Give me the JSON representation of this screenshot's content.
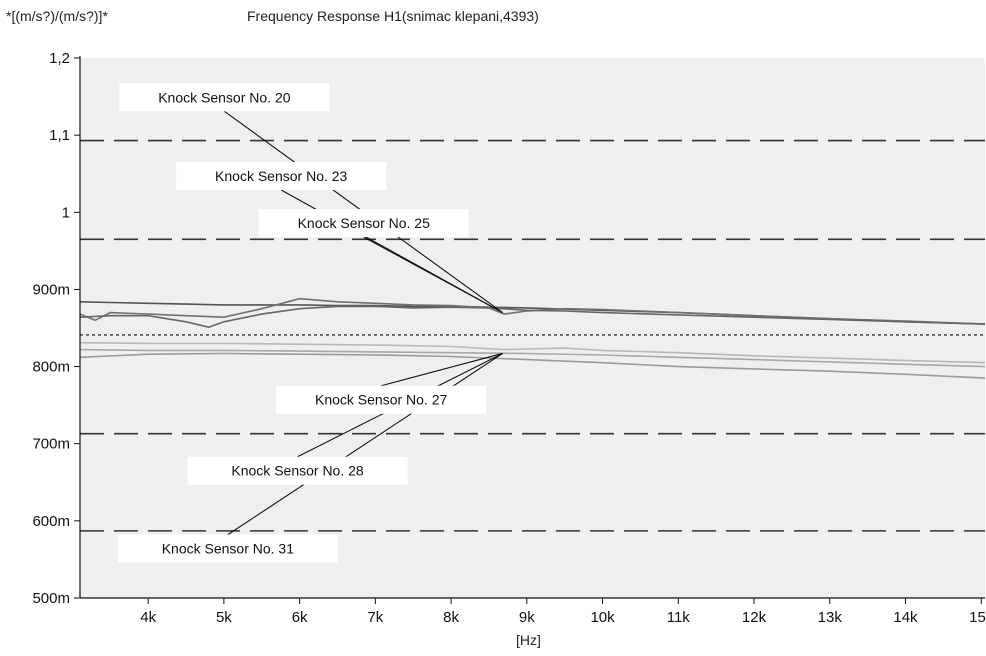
{
  "chart_data": {
    "type": "line",
    "unit_label": "*[(m/s?)/(m/s?)]*",
    "title": "Frequency Response H1(snimac klepani,4393)",
    "xlabel": "[Hz]",
    "ylabel": "",
    "xlim": [
      3100,
      15050
    ],
    "ylim": [
      0.5,
      1.2
    ],
    "grid": false,
    "x_ticks": [
      {
        "v": 4000,
        "label": "4k"
      },
      {
        "v": 5000,
        "label": "5k"
      },
      {
        "v": 6000,
        "label": "6k"
      },
      {
        "v": 7000,
        "label": "7k"
      },
      {
        "v": 8000,
        "label": "8k"
      },
      {
        "v": 9000,
        "label": "9k"
      },
      {
        "v": 10000,
        "label": "10k"
      },
      {
        "v": 11000,
        "label": "11k"
      },
      {
        "v": 12000,
        "label": "12k"
      },
      {
        "v": 13000,
        "label": "13k"
      },
      {
        "v": 14000,
        "label": "14k"
      },
      {
        "v": 15000,
        "label": "15k"
      }
    ],
    "y_ticks": [
      {
        "v": 0.5,
        "label": "500m"
      },
      {
        "v": 0.6,
        "label": "600m"
      },
      {
        "v": 0.7,
        "label": "700m"
      },
      {
        "v": 0.8,
        "label": "800m"
      },
      {
        "v": 0.9,
        "label": "900m"
      },
      {
        "v": 1.0,
        "label": "1"
      },
      {
        "v": 1.1,
        "label": "1,1"
      },
      {
        "v": 1.2,
        "label": "1,2"
      }
    ],
    "reference_lines": [
      {
        "y": 1.093,
        "style": "dashed"
      },
      {
        "y": 0.965,
        "style": "dashed"
      },
      {
        "y": 0.841,
        "style": "dotted"
      },
      {
        "y": 0.713,
        "style": "dashed"
      },
      {
        "y": 0.587,
        "style": "dashed"
      }
    ],
    "series": [
      {
        "name": "Knock Sensor No. 20",
        "color": "#555555",
        "x": [
          3100,
          3500,
          4000,
          4500,
          5000,
          5500,
          6000,
          6500,
          7000,
          7500,
          8000,
          8500,
          9000,
          10000,
          11000,
          12000,
          13000,
          14000,
          15050
        ],
        "y": [
          0.884,
          0.883,
          0.882,
          0.881,
          0.88,
          0.88,
          0.88,
          0.879,
          0.879,
          0.878,
          0.878,
          0.877,
          0.876,
          0.873,
          0.87,
          0.866,
          0.862,
          0.858,
          0.855
        ]
      },
      {
        "name": "Knock Sensor No. 23",
        "color": "#707070",
        "x": [
          3100,
          3300,
          3500,
          4000,
          4500,
          5000,
          5500,
          6000,
          6500,
          7000,
          7500,
          8000,
          8500,
          8700,
          9000,
          9500,
          10000,
          11000,
          12000,
          13000,
          14000,
          15050
        ],
        "y": [
          0.868,
          0.86,
          0.87,
          0.868,
          0.866,
          0.864,
          0.875,
          0.888,
          0.884,
          0.882,
          0.88,
          0.879,
          0.876,
          0.868,
          0.872,
          0.875,
          0.874,
          0.87,
          0.866,
          0.862,
          0.859,
          0.855
        ]
      },
      {
        "name": "Knock Sensor No. 25",
        "color": "#666666",
        "x": [
          3100,
          3500,
          4000,
          4500,
          4800,
          5000,
          5500,
          6000,
          6500,
          7000,
          7500,
          8000,
          8500,
          9000,
          9500,
          10000,
          11000,
          12000,
          13000,
          14000,
          15050
        ],
        "y": [
          0.864,
          0.866,
          0.866,
          0.858,
          0.851,
          0.858,
          0.868,
          0.875,
          0.878,
          0.878,
          0.876,
          0.877,
          0.876,
          0.873,
          0.872,
          0.87,
          0.867,
          0.864,
          0.861,
          0.858,
          0.855
        ]
      },
      {
        "name": "Knock Sensor No. 27",
        "color": "#a8a8a8",
        "x": [
          3100,
          4000,
          5000,
          6000,
          7000,
          8000,
          9000,
          10000,
          11000,
          12000,
          13000,
          14000,
          15050
        ],
        "y": [
          0.822,
          0.821,
          0.821,
          0.82,
          0.819,
          0.818,
          0.817,
          0.815,
          0.812,
          0.809,
          0.806,
          0.803,
          0.8
        ]
      },
      {
        "name": "Knock Sensor No. 28",
        "color": "#b8b8b8",
        "x": [
          3100,
          4000,
          5000,
          6000,
          7000,
          8000,
          8700,
          9500,
          10000,
          11000,
          12000,
          13000,
          14000,
          15050
        ],
        "y": [
          0.831,
          0.83,
          0.83,
          0.829,
          0.828,
          0.826,
          0.822,
          0.824,
          0.821,
          0.818,
          0.814,
          0.811,
          0.808,
          0.805
        ]
      },
      {
        "name": "Knock Sensor No. 31",
        "color": "#9a9a9a",
        "x": [
          3100,
          4000,
          5000,
          6000,
          7000,
          8000,
          9000,
          10000,
          11000,
          12000,
          13000,
          14000,
          15050
        ],
        "y": [
          0.812,
          0.816,
          0.817,
          0.816,
          0.815,
          0.813,
          0.809,
          0.805,
          0.8,
          0.797,
          0.794,
          0.79,
          0.785
        ]
      }
    ],
    "annotations": [
      {
        "text": "Knock Sensor No. 20",
        "box_x": 3620,
        "box_y": 1.149,
        "box_w": 210,
        "point_x": 8680,
        "point_y": 0.87
      },
      {
        "text": "Knock Sensor No. 23",
        "box_x": 4370,
        "box_y": 1.047,
        "box_w": 210,
        "point_x": 8680,
        "point_y": 0.87
      },
      {
        "text": "Knock Sensor No. 25",
        "box_x": 5460,
        "box_y": 0.986,
        "box_w": 210,
        "point_x": 8680,
        "point_y": 0.87
      },
      {
        "text": "Knock Sensor No. 27",
        "box_x": 5690,
        "box_y": 0.757,
        "box_w": 210,
        "point_x": 8680,
        "point_y": 0.817
      },
      {
        "text": "Knock Sensor No. 28",
        "box_x": 4520,
        "box_y": 0.665,
        "box_w": 220,
        "point_x": 8680,
        "point_y": 0.817
      },
      {
        "text": "Knock Sensor No. 31",
        "box_x": 3600,
        "box_y": 0.564,
        "box_w": 220,
        "point_x": 8680,
        "point_y": 0.817
      }
    ]
  }
}
